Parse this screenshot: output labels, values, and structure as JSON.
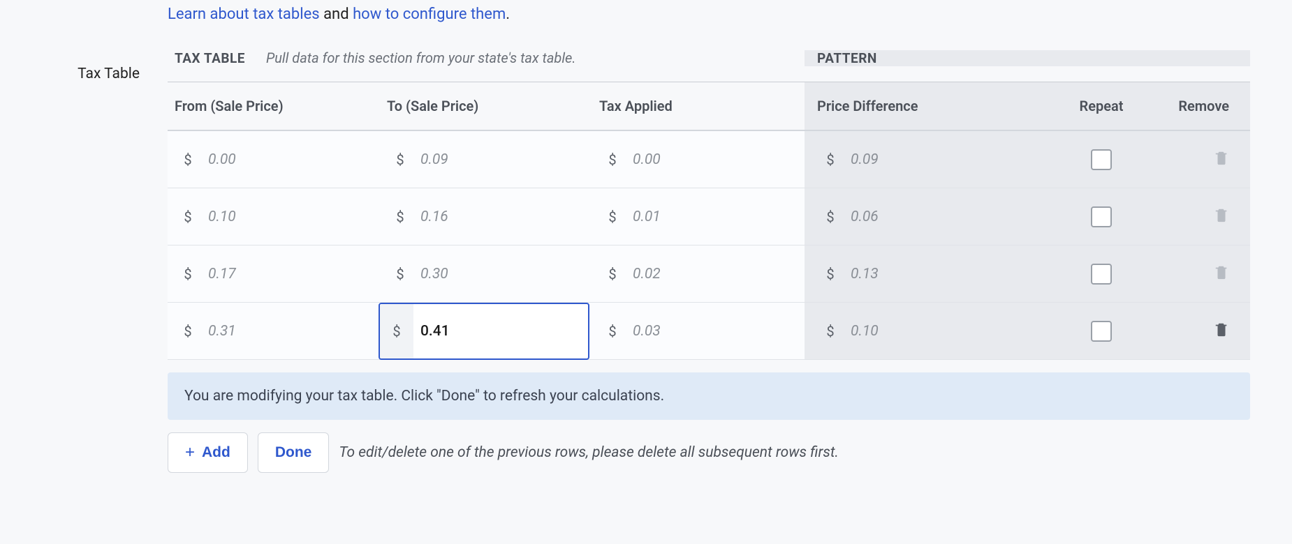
{
  "intro": {
    "link1": "Learn about tax tables",
    "mid": " and ",
    "link2": "how to configure them",
    "period": "."
  },
  "sideLabel": "Tax Table",
  "subheader": {
    "title": "TAX TABLE",
    "desc": "Pull data for this section from your state's tax table.",
    "patternTitle": "PATTERN"
  },
  "columns": {
    "from": "From (Sale Price)",
    "to": "To (Sale Price)",
    "tax": "Tax Applied",
    "diff": "Price Difference",
    "repeat": "Repeat",
    "remove": "Remove"
  },
  "currencySymbol": "$",
  "rows": [
    {
      "from": "0.00",
      "to": "0.09",
      "tax": "0.00",
      "diff": "0.09",
      "repeat": false,
      "toFocused": false,
      "trashActive": false
    },
    {
      "from": "0.10",
      "to": "0.16",
      "tax": "0.01",
      "diff": "0.06",
      "repeat": false,
      "toFocused": false,
      "trashActive": false
    },
    {
      "from": "0.17",
      "to": "0.30",
      "tax": "0.02",
      "diff": "0.13",
      "repeat": false,
      "toFocused": false,
      "trashActive": false
    },
    {
      "from": "0.31",
      "to": "0.41",
      "tax": "0.03",
      "diff": "0.10",
      "repeat": false,
      "toFocused": true,
      "trashActive": true
    }
  ],
  "notice": "You are modifying your tax table. Click \"Done\" to refresh your calculations.",
  "buttons": {
    "add": "Add",
    "done": "Done"
  },
  "footerNote": "To edit/delete one of the previous rows, please delete all subsequent rows first.",
  "colors": {
    "link": "#2f58cd",
    "pageBg": "#f7f8fa",
    "patternBg": "#e8eaee",
    "noticeBg": "#dfeaf7",
    "border": "#d3d7dd",
    "mutedText": "#8a8f96"
  }
}
